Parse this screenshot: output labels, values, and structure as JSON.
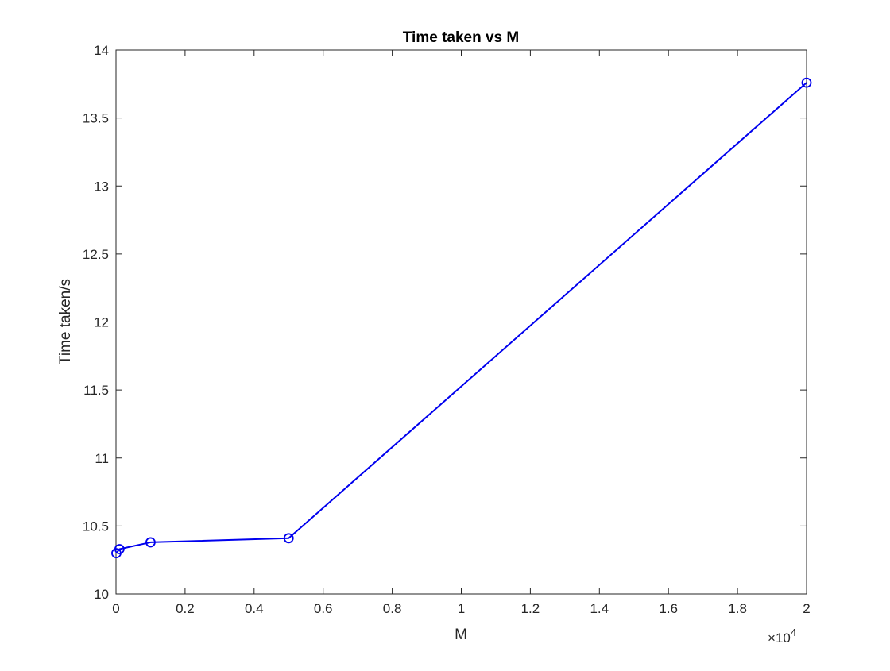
{
  "chart_data": {
    "type": "line",
    "title": "Time taken vs M",
    "xlabel": "M",
    "ylabel": "Time taken/s",
    "x_multiplier": {
      "base": "10",
      "exponent": "4"
    },
    "xlim": [
      0,
      2
    ],
    "ylim": [
      10,
      14
    ],
    "x_ticks": [
      "0",
      "0.2",
      "0.4",
      "0.6",
      "0.8",
      "1",
      "1.2",
      "1.4",
      "1.6",
      "1.8",
      "2"
    ],
    "y_ticks": [
      "10",
      "10.5",
      "11",
      "11.5",
      "12",
      "12.5",
      "13",
      "13.5",
      "14"
    ],
    "grid": false,
    "legend": "none",
    "series": [
      {
        "color": "#0000ee",
        "marker": "circle",
        "x": [
          0.001,
          0.01,
          0.1,
          0.5,
          2.0
        ],
        "y": [
          10.3,
          10.33,
          10.38,
          10.41,
          13.76
        ]
      }
    ]
  }
}
